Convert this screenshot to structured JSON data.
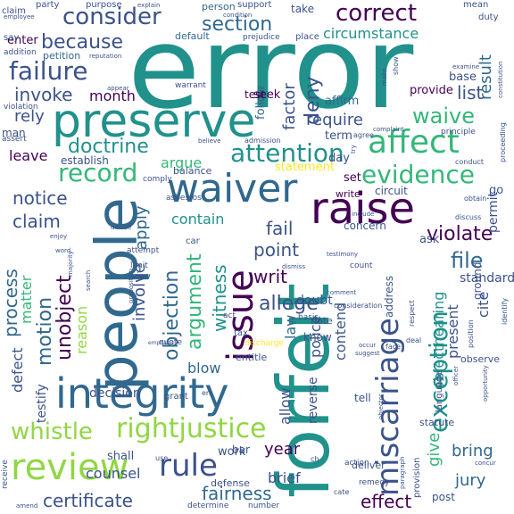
{
  "palette": {
    "purple": "#440154",
    "indigo": "#3b528b",
    "blue": "#31688e",
    "teal": "#21918c",
    "green": "#35b779",
    "lime": "#90d743",
    "yellow": "#fde725"
  },
  "words": [
    {
      "text": "error",
      "color": "#21918c"
    },
    {
      "text": "forfeit",
      "color": "#21918c"
    },
    {
      "text": "people",
      "color": "#31688e"
    },
    {
      "text": "preserve",
      "color": "#21918c"
    },
    {
      "text": "integrity",
      "color": "#31688e"
    },
    {
      "text": "waiver",
      "color": "#31688e"
    },
    {
      "text": "issue",
      "color": "#440154"
    },
    {
      "text": "raise",
      "color": "#440154"
    },
    {
      "text": "miscarriage",
      "color": "#3b528b"
    },
    {
      "text": "review",
      "color": "#90d743"
    },
    {
      "text": "whistle",
      "color": "#90d743"
    },
    {
      "text": "rightjustice",
      "color": "#90d743"
    },
    {
      "text": "consider",
      "color": "#3b528b"
    },
    {
      "text": "correct",
      "color": "#440154"
    },
    {
      "text": "failure",
      "color": "#3b528b"
    },
    {
      "text": "affect",
      "color": "#35b779"
    },
    {
      "text": "record",
      "color": "#35b779"
    },
    {
      "text": "attention",
      "color": "#21918c"
    },
    {
      "text": "evidence",
      "color": "#35b779"
    },
    {
      "text": "rule",
      "color": "#3b528b"
    },
    {
      "text": "exception",
      "color": "#21918c"
    },
    {
      "text": "section",
      "color": "#31688e"
    },
    {
      "text": "because",
      "color": "#3b528b"
    },
    {
      "text": "invoke",
      "color": "#3b528b"
    },
    {
      "text": "doctrine",
      "color": "#21918c"
    },
    {
      "text": "unobject",
      "color": "#440154"
    },
    {
      "text": "objection",
      "color": "#31688e"
    },
    {
      "text": "argument",
      "color": "#35b779"
    },
    {
      "text": "motion",
      "color": "#31688e"
    },
    {
      "text": "allege",
      "color": "#3b528b"
    },
    {
      "text": "fairness",
      "color": "#31688e"
    },
    {
      "text": "certificate",
      "color": "#3b528b"
    },
    {
      "text": "effect",
      "color": "#440154"
    },
    {
      "text": "claim",
      "color": "#3b528b"
    },
    {
      "text": "notice",
      "color": "#3b528b"
    },
    {
      "text": "process",
      "color": "#31688e"
    },
    {
      "text": "witness",
      "color": "#21918c"
    },
    {
      "text": "waive",
      "color": "#35b779"
    },
    {
      "text": "file",
      "color": "#31688e"
    },
    {
      "text": "circumstance",
      "color": "#21918c"
    },
    {
      "text": "result",
      "color": "#31688e"
    },
    {
      "text": "deny",
      "color": "#3b528b"
    },
    {
      "text": "list",
      "color": "#3b528b"
    },
    {
      "text": "require",
      "color": "#3b528b"
    },
    {
      "text": "factor",
      "color": "#3b528b"
    },
    {
      "text": "month",
      "color": "#440154"
    },
    {
      "text": "argue",
      "color": "#35b779"
    },
    {
      "text": "apply",
      "color": "#31688e"
    },
    {
      "text": "involve",
      "color": "#3b528b"
    },
    {
      "text": "contain",
      "color": "#21918c"
    },
    {
      "text": "fail",
      "color": "#3b528b"
    },
    {
      "text": "point",
      "color": "#3b528b"
    },
    {
      "text": "writ",
      "color": "#440154"
    },
    {
      "text": "violate",
      "color": "#440154"
    },
    {
      "text": "law",
      "color": "#31688e"
    },
    {
      "text": "counsel",
      "color": "#3b528b"
    },
    {
      "text": "jury",
      "color": "#31688e"
    },
    {
      "text": "bring",
      "color": "#31688e"
    },
    {
      "text": "present",
      "color": "#3b528b"
    },
    {
      "text": "contend",
      "color": "#3b528b"
    },
    {
      "text": "cite",
      "color": "#3b528b"
    },
    {
      "text": "reason",
      "color": "#90d743"
    },
    {
      "text": "blow",
      "color": "#31688e"
    },
    {
      "text": "defect",
      "color": "#3b528b"
    },
    {
      "text": "year",
      "color": "#440154"
    },
    {
      "text": "matter",
      "color": "#35b779"
    },
    {
      "text": "give",
      "color": "#35b779"
    },
    {
      "text": "objecthearing",
      "color": "#21918c"
    },
    {
      "text": "police",
      "color": "#3b528b"
    },
    {
      "text": "allow",
      "color": "#3b528b"
    },
    {
      "text": "reverse",
      "color": "#3b528b"
    },
    {
      "text": "testify",
      "color": "#3b528b"
    },
    {
      "text": "decision",
      "color": "#3b528b"
    },
    {
      "text": "leave",
      "color": "#440154"
    },
    {
      "text": "statement",
      "color": "#fde725"
    },
    {
      "text": "follow",
      "color": "#31688e"
    },
    {
      "text": "brief",
      "color": "#3b528b"
    },
    {
      "text": "shall",
      "color": "#3b528b"
    },
    {
      "text": "work",
      "color": "#3b528b"
    },
    {
      "text": "rely",
      "color": "#3b528b"
    },
    {
      "text": "establish",
      "color": "#3b528b"
    },
    {
      "text": "permit",
      "color": "#3b528b"
    },
    {
      "text": "standard",
      "color": "#3b528b"
    },
    {
      "text": "doubt",
      "color": "#3b528b"
    },
    {
      "text": "enter",
      "color": "#440154"
    },
    {
      "text": "petition",
      "color": "#31688e"
    },
    {
      "text": "person",
      "color": "#31688e"
    },
    {
      "text": "take",
      "color": "#3b528b"
    },
    {
      "text": "default",
      "color": "#31688e"
    },
    {
      "text": "seek",
      "color": "#440154"
    },
    {
      "text": "test",
      "color": "#440154"
    },
    {
      "text": "provide",
      "color": "#440154"
    },
    {
      "text": "base",
      "color": "#3b528b"
    },
    {
      "text": "affirm",
      "color": "#31688e"
    },
    {
      "text": "term",
      "color": "#3b528b"
    },
    {
      "text": "day",
      "color": "#3b528b"
    },
    {
      "text": "set",
      "color": "#440154"
    },
    {
      "text": "balance",
      "color": "#3b528b"
    },
    {
      "text": "concern",
      "color": "#3b528b"
    },
    {
      "text": "circuit",
      "color": "#3b528b"
    },
    {
      "text": "write",
      "color": "#440154"
    },
    {
      "text": "address",
      "color": "#3b528b"
    },
    {
      "text": "ask",
      "color": "#3b528b"
    },
    {
      "text": "note",
      "color": "#3b528b"
    },
    {
      "text": "know",
      "color": "#3b528b"
    },
    {
      "text": "entitle",
      "color": "#3b528b"
    },
    {
      "text": "bar",
      "color": "#3b528b"
    },
    {
      "text": "ground",
      "color": "#3b528b"
    },
    {
      "text": "observe",
      "color": "#3b528b"
    },
    {
      "text": "post",
      "color": "#3b528b"
    },
    {
      "text": "man",
      "color": "#3b528b"
    },
    {
      "text": "go",
      "color": "#3b528b"
    },
    {
      "text": "defense",
      "color": "#3b528b"
    },
    {
      "text": "deliver",
      "color": "#3b528b"
    },
    {
      "text": "tell",
      "color": "#3b528b"
    },
    {
      "text": "statute",
      "color": "#3b528b"
    },
    {
      "text": "grant",
      "color": "#3b528b"
    },
    {
      "text": "attempt",
      "color": "#3b528b"
    },
    {
      "text": "duty",
      "color": "#3b528b"
    },
    {
      "text": "say",
      "color": "#3b528b"
    },
    {
      "text": "mean",
      "color": "#3b528b"
    },
    {
      "text": "place",
      "color": "#3b528b"
    },
    {
      "text": "support",
      "color": "#3b528b"
    },
    {
      "text": "party",
      "color": "#3b528b"
    },
    {
      "text": "purpose",
      "color": "#3b528b"
    },
    {
      "text": "claim",
      "color": "#3b528b"
    },
    {
      "text": "car",
      "color": "#3b528b"
    },
    {
      "text": "asbestos",
      "color": "#3b528b"
    },
    {
      "text": "comply",
      "color": "#3b528b"
    },
    {
      "text": "discharge",
      "color": "#fde725"
    },
    {
      "text": "tax",
      "color": "#3b528b"
    },
    {
      "text": "quote",
      "color": "#3b528b"
    },
    {
      "text": "count",
      "color": "#3b528b"
    },
    {
      "text": "act",
      "color": "#3b528b"
    },
    {
      "text": "view",
      "color": "#3b528b"
    },
    {
      "text": "limit",
      "color": "#3b528b"
    },
    {
      "text": "basis",
      "color": "#3b528b"
    },
    {
      "text": "language",
      "color": "#3b528b"
    },
    {
      "text": "provision",
      "color": "#3b528b"
    },
    {
      "text": "action",
      "color": "#3b528b"
    },
    {
      "text": "remedy",
      "color": "#3b528b"
    },
    {
      "text": "determine",
      "color": "#3b528b"
    },
    {
      "text": "number",
      "color": "#3b528b"
    },
    {
      "text": "receive",
      "color": "#3b528b"
    },
    {
      "text": "amend",
      "color": "#3b528b"
    },
    {
      "text": "assert",
      "color": "#3b528b"
    },
    {
      "text": "violation",
      "color": "#3b528b"
    },
    {
      "text": "addition",
      "color": "#3b528b"
    },
    {
      "text": "employee",
      "color": "#3b528b"
    },
    {
      "text": "warrant",
      "color": "#3b528b"
    },
    {
      "text": "prejudice",
      "color": "#3b528b"
    },
    {
      "text": "admission",
      "color": "#3b528b"
    },
    {
      "text": "believe",
      "color": "#3b528b"
    },
    {
      "text": "complaint",
      "color": "#3b528b"
    },
    {
      "text": "agree",
      "color": "#3b528b"
    },
    {
      "text": "principle",
      "color": "#3b528b"
    },
    {
      "text": "conduct",
      "color": "#3b528b"
    },
    {
      "text": "proceeding",
      "color": "#3b528b"
    },
    {
      "text": "discuss",
      "color": "#3b528b"
    },
    {
      "text": "obtain",
      "color": "#3b528b"
    },
    {
      "text": "include",
      "color": "#3b528b"
    },
    {
      "text": "testimony",
      "color": "#3b528b"
    },
    {
      "text": "dismiss",
      "color": "#3b528b"
    },
    {
      "text": "consideration",
      "color": "#3b528b"
    },
    {
      "text": "comment",
      "color": "#3b528b"
    },
    {
      "text": "respect",
      "color": "#3b528b"
    },
    {
      "text": "position",
      "color": "#3b528b"
    },
    {
      "text": "identify",
      "color": "#3b528b"
    },
    {
      "text": "officer",
      "color": "#3b528b"
    },
    {
      "text": "opportunity",
      "color": "#3b528b"
    },
    {
      "text": "suggest",
      "color": "#3b528b"
    },
    {
      "text": "occur",
      "color": "#3b528b"
    },
    {
      "text": "face",
      "color": "#3b528b"
    },
    {
      "text": "deal",
      "color": "#3b528b"
    },
    {
      "text": "paragraph",
      "color": "#3b528b"
    },
    {
      "text": "objector",
      "color": "#3b528b"
    },
    {
      "text": "show",
      "color": "#3b528b"
    },
    {
      "text": "make",
      "color": "#3b528b"
    },
    {
      "text": "examine",
      "color": "#3b528b"
    },
    {
      "text": "constitution",
      "color": "#3b528b"
    },
    {
      "text": "condition",
      "color": "#3b528b"
    },
    {
      "text": "explain",
      "color": "#3b528b"
    },
    {
      "text": "reputation",
      "color": "#3b528b"
    },
    {
      "text": "appear",
      "color": "#3b528b"
    },
    {
      "text": "decide",
      "color": "#3b528b"
    },
    {
      "text": "enjoy",
      "color": "#3b528b"
    },
    {
      "text": "word",
      "color": "#3b528b"
    },
    {
      "text": "majority",
      "color": "#3b528b"
    },
    {
      "text": "search",
      "color": "#3b528b"
    },
    {
      "text": "proposition",
      "color": "#3b528b"
    },
    {
      "text": "emphasis",
      "color": "#3b528b"
    },
    {
      "text": "err",
      "color": "#3b528b"
    },
    {
      "text": "cate",
      "color": "#3b528b"
    },
    {
      "text": "use",
      "color": "#3b528b"
    },
    {
      "text": "ch",
      "color": "#3b528b"
    },
    {
      "text": "concur",
      "color": "#3b528b"
    },
    {
      "text": "try",
      "color": "#3b528b"
    }
  ]
}
